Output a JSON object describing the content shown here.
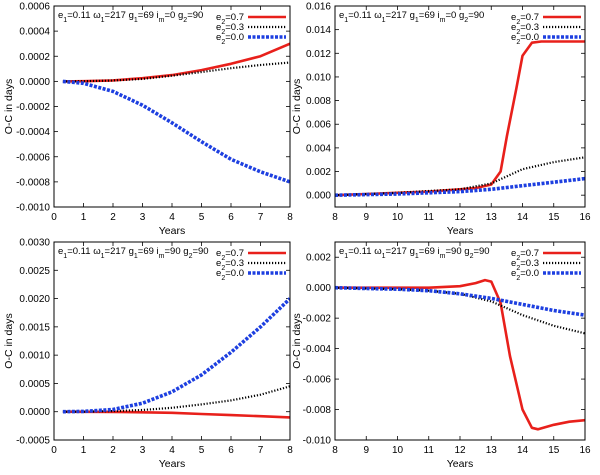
{
  "chart_data": [
    {
      "type": "line",
      "xlabel": "Years",
      "ylabel": "O-C in days",
      "xlim": [
        0,
        8
      ],
      "ylim": [
        -0.001,
        0.0006
      ],
      "xticks": [
        0,
        1,
        2,
        3,
        4,
        5,
        6,
        7,
        8
      ],
      "yticks": [
        -0.001,
        -0.0008,
        -0.0006,
        -0.0004,
        -0.0002,
        0,
        0.0002,
        0.0004,
        0.0006
      ],
      "ytick_labels": [
        "-0.0010",
        "-0.0008",
        "-0.0006",
        "-0.0004",
        "-0.0002",
        "0.0000",
        "0.0002",
        "0.0004",
        "0.0006"
      ],
      "params": {
        "e1": "0.11",
        "w1": "217",
        "g1": "69",
        "im": "0",
        "g2": "90"
      },
      "series": [
        {
          "name": "e2=0.7",
          "label_main": "e",
          "label_sub": "2",
          "label_val": "=0.7",
          "color": "#e8201b",
          "style": "solid",
          "x": [
            0.3,
            1,
            2,
            3,
            4,
            5,
            6,
            7,
            8
          ],
          "y": [
            0,
            1e-06,
            8e-06,
            2.5e-05,
            5e-05,
            9e-05,
            0.00014,
            0.0002,
            0.0003
          ]
        },
        {
          "name": "e2=0.3",
          "label_main": "e",
          "label_sub": "2",
          "label_val": "=0.3",
          "color": "#000000",
          "style": "dotted",
          "x": [
            0.3,
            1,
            2,
            3,
            4,
            5,
            6,
            7,
            8
          ],
          "y": [
            0,
            1e-06,
            7e-06,
            2e-05,
            4.5e-05,
            7.5e-05,
            0.000105,
            0.00013,
            0.00015
          ]
        },
        {
          "name": "e2=0.0",
          "label_main": "e",
          "label_sub": "2",
          "label_val": "=0.0",
          "color": "#1d3fe0",
          "style": "dashed",
          "x": [
            0.3,
            1,
            2,
            3,
            4,
            5,
            6,
            7,
            8
          ],
          "y": [
            0,
            -1.5e-05,
            -8e-05,
            -0.00019,
            -0.00033,
            -0.00048,
            -0.00062,
            -0.00072,
            -0.0008
          ]
        }
      ]
    },
    {
      "type": "line",
      "xlabel": "Years",
      "ylabel": "O-C in days",
      "xlim": [
        8,
        16
      ],
      "ylim": [
        -0.001,
        0.016
      ],
      "xticks": [
        8,
        9,
        10,
        11,
        12,
        13,
        14,
        15,
        16
      ],
      "yticks": [
        0,
        0.002,
        0.004,
        0.006,
        0.008,
        0.01,
        0.012,
        0.014,
        0.016
      ],
      "ytick_labels": [
        "0.000",
        "0.002",
        "0.004",
        "0.006",
        "0.008",
        "0.010",
        "0.012",
        "0.014",
        "0.016"
      ],
      "params": {
        "e1": "0.11",
        "w1": "217",
        "g1": "69",
        "im": "0",
        "g2": "90"
      },
      "series": [
        {
          "name": "e2=0.7",
          "label_main": "e",
          "label_sub": "2",
          "label_val": "=0.7",
          "color": "#e8201b",
          "style": "solid",
          "x": [
            8,
            9,
            10,
            11,
            12,
            12.5,
            13,
            13.3,
            13.5,
            13.8,
            14,
            14.3,
            14.6,
            15,
            15.5,
            16
          ],
          "y": [
            0,
            0.0001,
            0.0002,
            0.0003,
            0.0005,
            0.0006,
            0.0009,
            0.002,
            0.005,
            0.009,
            0.0118,
            0.0129,
            0.013,
            0.013,
            0.013,
            0.013
          ]
        },
        {
          "name": "e2=0.3",
          "label_main": "e",
          "label_sub": "2",
          "label_val": "=0.3",
          "color": "#000000",
          "style": "dotted",
          "x": [
            8,
            9,
            10,
            11,
            12,
            13,
            14,
            15,
            16
          ],
          "y": [
            0,
            0.0001,
            0.0002,
            0.00035,
            0.0005,
            0.001,
            0.0022,
            0.0028,
            0.0032
          ]
        },
        {
          "name": "e2=0.0",
          "label_main": "e",
          "label_sub": "2",
          "label_val": "=0.0",
          "color": "#1d3fe0",
          "style": "dashed",
          "x": [
            8,
            9,
            10,
            11,
            12,
            13,
            14,
            15,
            16
          ],
          "y": [
            0,
            5e-05,
            0.0001,
            0.0002,
            0.0003,
            0.0005,
            0.0008,
            0.0011,
            0.0014
          ]
        }
      ]
    },
    {
      "type": "line",
      "xlabel": "Years",
      "ylabel": "O-C in days",
      "xlim": [
        0,
        8
      ],
      "ylim": [
        -0.0005,
        0.003
      ],
      "xticks": [
        0,
        1,
        2,
        3,
        4,
        5,
        6,
        7,
        8
      ],
      "yticks": [
        -0.0005,
        0,
        0.0005,
        0.001,
        0.0015,
        0.002,
        0.0025,
        0.003
      ],
      "ytick_labels": [
        "-0.0005",
        "0.0000",
        "0.0005",
        "0.0010",
        "0.0015",
        "0.0020",
        "0.0025",
        "0.0030"
      ],
      "params": {
        "e1": "0.11",
        "w1": "217",
        "g1": "69",
        "im": "90",
        "g2": "90"
      },
      "series": [
        {
          "name": "e2=0.7",
          "label_main": "e",
          "label_sub": "2",
          "label_val": "=0.7",
          "color": "#e8201b",
          "style": "solid",
          "x": [
            0.3,
            1,
            2,
            3,
            4,
            5,
            6,
            7,
            8
          ],
          "y": [
            0,
            -1e-06,
            -4e-06,
            -1e-05,
            -2e-05,
            -4e-05,
            -6e-05,
            -8e-05,
            -0.0001
          ]
        },
        {
          "name": "e2=0.3",
          "label_main": "e",
          "label_sub": "2",
          "label_val": "=0.3",
          "color": "#000000",
          "style": "dotted",
          "x": [
            0.3,
            1,
            2,
            3,
            4,
            5,
            6,
            7,
            8
          ],
          "y": [
            0,
            1e-06,
            1e-05,
            3e-05,
            7e-05,
            0.00013,
            0.0002,
            0.0003,
            0.00045
          ]
        },
        {
          "name": "e2=0.0",
          "label_main": "e",
          "label_sub": "2",
          "label_val": "=0.0",
          "color": "#1d3fe0",
          "style": "dashed",
          "x": [
            0.3,
            1,
            2,
            3,
            4,
            5,
            6,
            7,
            8
          ],
          "y": [
            0,
            5e-06,
            4e-05,
            0.00015,
            0.00035,
            0.00065,
            0.00105,
            0.0015,
            0.002
          ]
        }
      ]
    },
    {
      "type": "line",
      "xlabel": "Years",
      "ylabel": "O-C in days",
      "xlim": [
        8,
        16
      ],
      "ylim": [
        -0.01,
        0.003
      ],
      "xticks": [
        8,
        9,
        10,
        11,
        12,
        13,
        14,
        15,
        16
      ],
      "yticks": [
        -0.01,
        -0.008,
        -0.006,
        -0.004,
        -0.002,
        0,
        0.002
      ],
      "ytick_labels": [
        "-0.010",
        "-0.008",
        "-0.006",
        "-0.004",
        "-0.002",
        "0.000",
        "0.002"
      ],
      "params": {
        "e1": "0.11",
        "w1": "217",
        "g1": "69",
        "im": "90",
        "g2": "90"
      },
      "series": [
        {
          "name": "e2=0.7",
          "label_main": "e",
          "label_sub": "2",
          "label_val": "=0.7",
          "color": "#e8201b",
          "style": "solid",
          "x": [
            8,
            10,
            11,
            12,
            12.5,
            12.8,
            13,
            13.3,
            13.6,
            14,
            14.3,
            14.5,
            15,
            15.5,
            16
          ],
          "y": [
            0,
            0,
            0,
            0.0001,
            0.0003,
            0.0005,
            0.0004,
            -0.001,
            -0.0045,
            -0.008,
            -0.0092,
            -0.0093,
            -0.009,
            -0.0088,
            -0.0087
          ]
        },
        {
          "name": "e2=0.3",
          "label_main": "e",
          "label_sub": "2",
          "label_val": "=0.3",
          "color": "#000000",
          "style": "dotted",
          "x": [
            8,
            9,
            10,
            11,
            12,
            13,
            14,
            15,
            16
          ],
          "y": [
            0,
            -5e-05,
            -0.0001,
            -0.0002,
            -0.0004,
            -0.0009,
            -0.0018,
            -0.0025,
            -0.003
          ]
        },
        {
          "name": "e2=0.0",
          "label_main": "e",
          "label_sub": "2",
          "label_val": "=0.0",
          "color": "#1d3fe0",
          "style": "dashed",
          "x": [
            8,
            9,
            10,
            11,
            12,
            13,
            14,
            15,
            16
          ],
          "y": [
            0,
            -5e-05,
            -0.0001,
            -0.0002,
            -0.0004,
            -0.0007,
            -0.0011,
            -0.0015,
            -0.0018
          ]
        }
      ]
    }
  ]
}
